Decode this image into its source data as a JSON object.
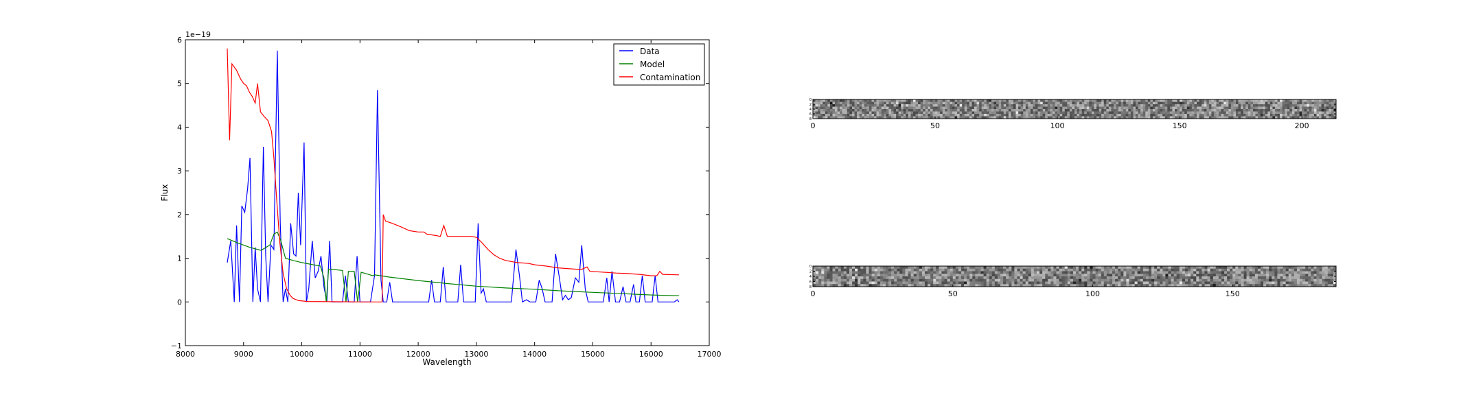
{
  "chart_data": [
    {
      "type": "line",
      "title": "",
      "xlabel": "Wavelength",
      "ylabel": "Flux",
      "xlim": [
        8000,
        17000
      ],
      "ylim": [
        -1,
        6
      ],
      "y_scale_label": "1e−19",
      "xticks": [
        8000,
        9000,
        10000,
        11000,
        12000,
        13000,
        14000,
        15000,
        16000,
        17000
      ],
      "yticks": [
        -1,
        0,
        1,
        2,
        3,
        4,
        5,
        6
      ],
      "grid": false,
      "legend": "top-right",
      "series": [
        {
          "name": "Data",
          "color": "#0000ff",
          "points": [
            [
              8720,
              0.9
            ],
            [
              8780,
              1.4
            ],
            [
              8840,
              0.0
            ],
            [
              8880,
              1.75
            ],
            [
              8930,
              0.0
            ],
            [
              8970,
              2.2
            ],
            [
              9020,
              2.05
            ],
            [
              9070,
              2.6
            ],
            [
              9110,
              3.3
            ],
            [
              9160,
              0.0
            ],
            [
              9200,
              1.25
            ],
            [
              9240,
              0.3
            ],
            [
              9290,
              0.0
            ],
            [
              9340,
              3.55
            ],
            [
              9380,
              1.05
            ],
            [
              9420,
              0.0
            ],
            [
              9470,
              1.3
            ],
            [
              9520,
              1.2
            ],
            [
              9580,
              5.75
            ],
            [
              9630,
              1.8
            ],
            [
              9680,
              0.0
            ],
            [
              9720,
              0.3
            ],
            [
              9760,
              0.0
            ],
            [
              9810,
              1.8
            ],
            [
              9860,
              1.1
            ],
            [
              9900,
              1.05
            ],
            [
              9940,
              2.5
            ],
            [
              9980,
              1.3
            ],
            [
              10040,
              3.65
            ],
            [
              10080,
              0.0
            ],
            [
              10120,
              0.3
            ],
            [
              10180,
              1.4
            ],
            [
              10230,
              0.55
            ],
            [
              10280,
              0.7
            ],
            [
              10330,
              1.05
            ],
            [
              10380,
              0.35
            ],
            [
              10430,
              0.0
            ],
            [
              10480,
              1.4
            ],
            [
              10520,
              0.0
            ],
            [
              10700,
              0.0
            ],
            [
              10750,
              0.6
            ],
            [
              10800,
              0.0
            ],
            [
              10900,
              0.0
            ],
            [
              10950,
              1.05
            ],
            [
              11000,
              0.0
            ],
            [
              11100,
              0.0
            ],
            [
              11180,
              0.0
            ],
            [
              11250,
              0.6
            ],
            [
              11300,
              4.85
            ],
            [
              11360,
              0.5
            ],
            [
              11400,
              0.0
            ],
            [
              11460,
              0.0
            ],
            [
              11510,
              0.45
            ],
            [
              11560,
              0.0
            ],
            [
              11700,
              0.0
            ],
            [
              12000,
              0.0
            ],
            [
              12180,
              0.0
            ],
            [
              12230,
              0.5
            ],
            [
              12280,
              0.0
            ],
            [
              12380,
              0.0
            ],
            [
              12430,
              0.8
            ],
            [
              12480,
              0.0
            ],
            [
              12680,
              0.0
            ],
            [
              12730,
              0.85
            ],
            [
              12780,
              0.0
            ],
            [
              12980,
              0.0
            ],
            [
              13030,
              1.8
            ],
            [
              13080,
              0.2
            ],
            [
              13120,
              0.3
            ],
            [
              13170,
              0.0
            ],
            [
              13600,
              0.0
            ],
            [
              13680,
              1.2
            ],
            [
              13740,
              0.6
            ],
            [
              13790,
              0.0
            ],
            [
              13860,
              0.05
            ],
            [
              13920,
              0.0
            ],
            [
              14020,
              0.0
            ],
            [
              14080,
              0.5
            ],
            [
              14130,
              0.3
            ],
            [
              14180,
              0.0
            ],
            [
              14300,
              0.0
            ],
            [
              14360,
              1.1
            ],
            [
              14420,
              0.6
            ],
            [
              14480,
              0.05
            ],
            [
              14530,
              0.15
            ],
            [
              14580,
              0.05
            ],
            [
              14630,
              0.1
            ],
            [
              14700,
              0.55
            ],
            [
              14760,
              0.45
            ],
            [
              14810,
              1.3
            ],
            [
              14870,
              0.3
            ],
            [
              14920,
              0.0
            ],
            [
              15180,
              0.0
            ],
            [
              15240,
              0.55
            ],
            [
              15280,
              0.0
            ],
            [
              15330,
              0.7
            ],
            [
              15390,
              0.0
            ],
            [
              15460,
              0.0
            ],
            [
              15520,
              0.35
            ],
            [
              15570,
              0.0
            ],
            [
              15640,
              0.0
            ],
            [
              15700,
              0.4
            ],
            [
              15740,
              0.0
            ],
            [
              15800,
              0.0
            ],
            [
              15850,
              0.6
            ],
            [
              15900,
              0.0
            ],
            [
              16020,
              0.0
            ],
            [
              16070,
              0.6
            ],
            [
              16120,
              0.0
            ],
            [
              16400,
              0.0
            ],
            [
              16450,
              0.05
            ],
            [
              16480,
              0.0
            ]
          ]
        },
        {
          "name": "Model",
          "color": "#008000",
          "points": [
            [
              8720,
              1.45
            ],
            [
              8900,
              1.35
            ],
            [
              9100,
              1.25
            ],
            [
              9300,
              1.18
            ],
            [
              9450,
              1.3
            ],
            [
              9520,
              1.55
            ],
            [
              9580,
              1.6
            ],
            [
              9640,
              1.4
            ],
            [
              9720,
              1.0
            ],
            [
              9850,
              0.95
            ],
            [
              10000,
              0.9
            ],
            [
              10200,
              0.85
            ],
            [
              10320,
              0.82
            ],
            [
              10380,
              0.55
            ],
            [
              10420,
              0.0
            ],
            [
              10460,
              0.75
            ],
            [
              10500,
              0.75
            ],
            [
              10700,
              0.72
            ],
            [
              10760,
              0.0
            ],
            [
              10800,
              0.7
            ],
            [
              10900,
              0.7
            ],
            [
              10960,
              0.0
            ],
            [
              11020,
              0.68
            ],
            [
              11100,
              0.65
            ],
            [
              11220,
              0.6
            ],
            [
              11250,
              0.62
            ],
            [
              11500,
              0.57
            ],
            [
              12000,
              0.49
            ],
            [
              12500,
              0.42
            ],
            [
              13000,
              0.36
            ],
            [
              13500,
              0.32
            ],
            [
              14000,
              0.29
            ],
            [
              14500,
              0.25
            ],
            [
              15000,
              0.22
            ],
            [
              15500,
              0.19
            ],
            [
              16000,
              0.16
            ],
            [
              16480,
              0.14
            ]
          ]
        },
        {
          "name": "Contamination",
          "color": "#ff0000",
          "points": [
            [
              8720,
              5.8
            ],
            [
              8760,
              3.7
            ],
            [
              8800,
              5.45
            ],
            [
              8880,
              5.3
            ],
            [
              8950,
              5.1
            ],
            [
              9000,
              5.0
            ],
            [
              9050,
              4.95
            ],
            [
              9100,
              4.8
            ],
            [
              9150,
              4.7
            ],
            [
              9200,
              4.55
            ],
            [
              9240,
              5.0
            ],
            [
              9290,
              4.35
            ],
            [
              9350,
              4.25
            ],
            [
              9420,
              4.15
            ],
            [
              9480,
              3.9
            ],
            [
              9520,
              3.3
            ],
            [
              9560,
              2.5
            ],
            [
              9620,
              1.4
            ],
            [
              9680,
              0.65
            ],
            [
              9740,
              0.3
            ],
            [
              9800,
              0.15
            ],
            [
              9850,
              0.08
            ],
            [
              9950,
              0.03
            ],
            [
              10100,
              0.01
            ],
            [
              11000,
              0.0
            ],
            [
              11380,
              0.0
            ],
            [
              11400,
              2.0
            ],
            [
              11440,
              1.85
            ],
            [
              11550,
              1.8
            ],
            [
              11700,
              1.72
            ],
            [
              11850,
              1.63
            ],
            [
              12000,
              1.6
            ],
            [
              12100,
              1.6
            ],
            [
              12150,
              1.55
            ],
            [
              12300,
              1.52
            ],
            [
              12380,
              1.5
            ],
            [
              12440,
              1.75
            ],
            [
              12500,
              1.5
            ],
            [
              12650,
              1.5
            ],
            [
              12800,
              1.5
            ],
            [
              12900,
              1.5
            ],
            [
              13000,
              1.48
            ],
            [
              13100,
              1.35
            ],
            [
              13200,
              1.2
            ],
            [
              13300,
              1.08
            ],
            [
              13400,
              1.0
            ],
            [
              13500,
              0.95
            ],
            [
              13700,
              0.9
            ],
            [
              13900,
              0.88
            ],
            [
              14000,
              0.85
            ],
            [
              14200,
              0.82
            ],
            [
              14400,
              0.78
            ],
            [
              14600,
              0.76
            ],
            [
              14800,
              0.74
            ],
            [
              14900,
              0.8
            ],
            [
              14950,
              0.7
            ],
            [
              15200,
              0.68
            ],
            [
              15400,
              0.66
            ],
            [
              15600,
              0.65
            ],
            [
              15800,
              0.63
            ],
            [
              16000,
              0.6
            ],
            [
              16100,
              0.6
            ],
            [
              16150,
              0.7
            ],
            [
              16200,
              0.63
            ],
            [
              16480,
              0.62
            ]
          ]
        }
      ]
    },
    {
      "type": "heatmap",
      "title": "",
      "xticks": [
        0,
        50,
        100,
        150,
        200
      ],
      "xlim": [
        0,
        214
      ],
      "ylim": [
        0,
        8
      ],
      "yticks": [
        0,
        2,
        4,
        6,
        8
      ],
      "colormap": "gray",
      "grid": false
    },
    {
      "type": "heatmap",
      "title": "",
      "xticks": [
        0,
        50,
        100,
        150
      ],
      "xlim": [
        0,
        187
      ],
      "ylim": [
        0,
        8
      ],
      "yticks": [
        0,
        2,
        4,
        6,
        8
      ],
      "colormap": "gray",
      "grid": false
    }
  ]
}
